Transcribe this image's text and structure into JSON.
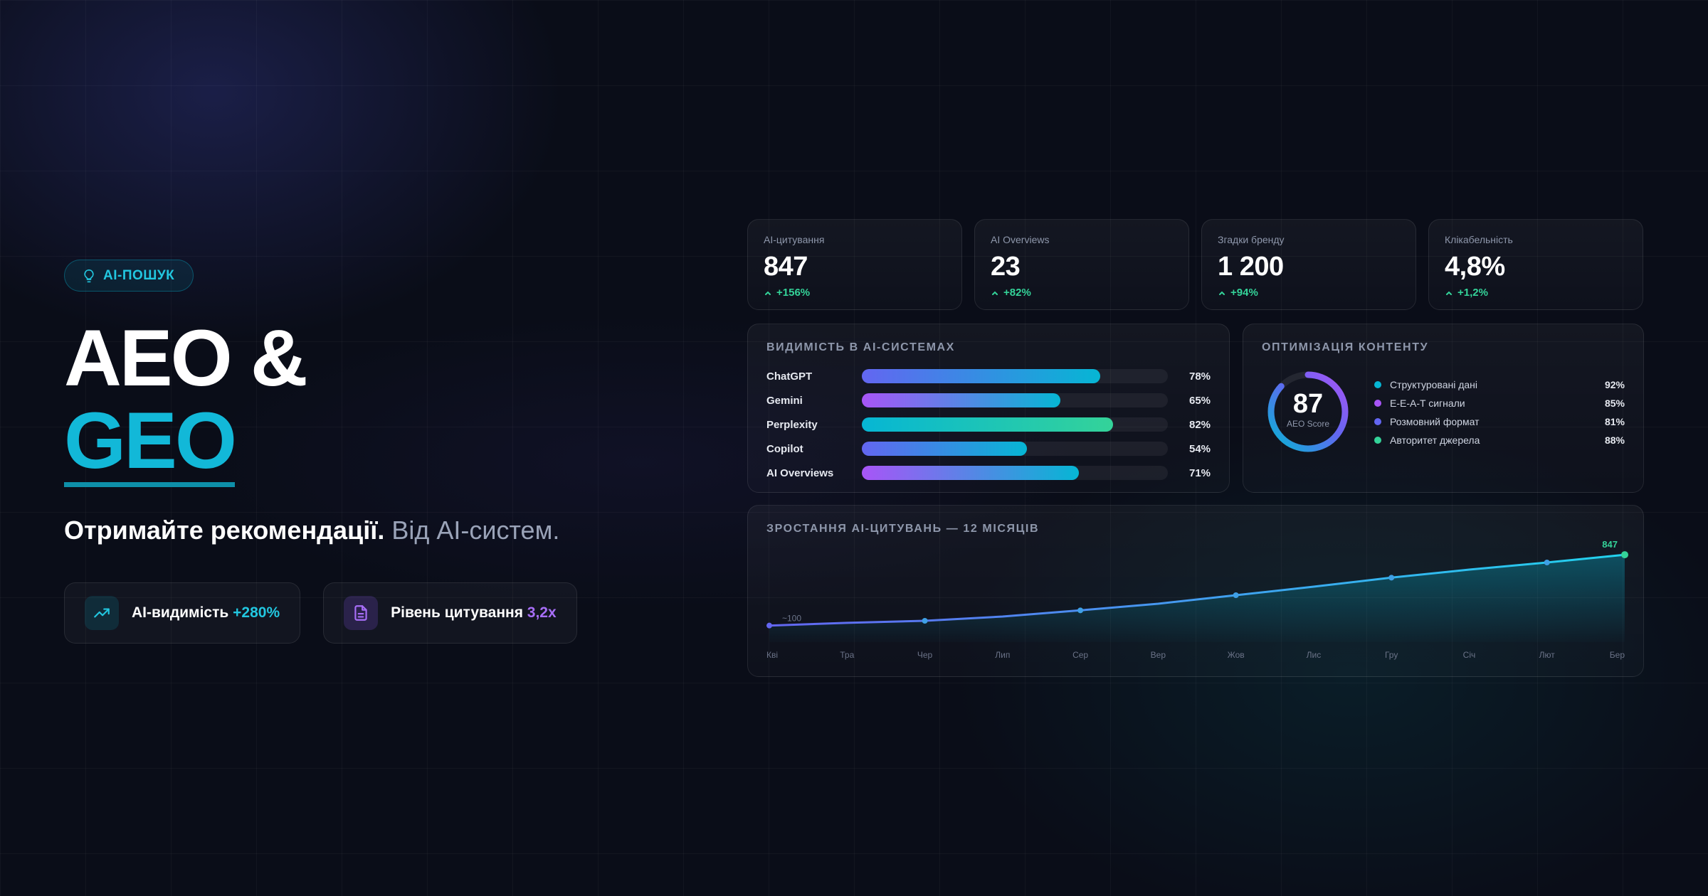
{
  "hero": {
    "badge": "AI-ПОШУК",
    "title_line1": "AEO &",
    "title_line2": "GEO",
    "subtitle_strong": "Отримайте рекомендації.",
    "subtitle_muted": " Від AI-систем.",
    "pills": [
      {
        "label": "AI-видимість ",
        "value": "+280%",
        "icon": "trending-up-icon"
      },
      {
        "label": "Рівень цитування ",
        "value": "3,2x",
        "icon": "document-icon"
      }
    ]
  },
  "kpis": [
    {
      "label": "AI-цитування",
      "value": "847",
      "delta": "+156%"
    },
    {
      "label": "AI Overviews",
      "value": "23",
      "delta": "+82%"
    },
    {
      "label": "Згадки бренду",
      "value": "1 200",
      "delta": "+94%"
    },
    {
      "label": "Клікабельність",
      "value": "4,8%",
      "delta": "+1,2%"
    }
  ],
  "visibility": {
    "title": "ВИДИМІСТЬ В AI-СИСТЕМАХ",
    "rows": [
      {
        "name": "ChatGPT",
        "value": 78,
        "label": "78%"
      },
      {
        "name": "Gemini",
        "value": 65,
        "label": "65%"
      },
      {
        "name": "Perplexity",
        "value": 82,
        "label": "82%"
      },
      {
        "name": "Copilot",
        "value": 54,
        "label": "54%"
      },
      {
        "name": "AI Overviews",
        "value": 71,
        "label": "71%"
      }
    ]
  },
  "optimization": {
    "title": "ОПТИМІЗАЦІЯ КОНТЕНТУ",
    "score": "87",
    "score_value": 87,
    "score_caption": "AEO Score",
    "items": [
      {
        "name": "Структуровані дані",
        "value": "92%",
        "color": "#06b6d4"
      },
      {
        "name": "E-E-A-T сигнали",
        "value": "85%",
        "color": "#a855f7"
      },
      {
        "name": "Розмовний формат",
        "value": "81%",
        "color": "#6366f1"
      },
      {
        "name": "Авторитет джерела",
        "value": "88%",
        "color": "#34d399"
      }
    ]
  },
  "chart_data": {
    "type": "area",
    "title": "ЗРОСТАННЯ AI-ЦИТУВАНЬ — 12 МІСЯЦІВ",
    "categories": [
      "Кві",
      "Тра",
      "Чер",
      "Лип",
      "Сер",
      "Вер",
      "Жов",
      "Лис",
      "Гру",
      "Січ",
      "Лют",
      "Бер"
    ],
    "values": [
      100,
      128,
      150,
      195,
      260,
      330,
      420,
      510,
      605,
      690,
      765,
      847
    ],
    "start_label": "~100",
    "end_label": "847",
    "ylim": [
      0,
      900
    ],
    "xlabel": "",
    "ylabel": ""
  },
  "colors": {
    "accent_cyan": "#06b6d4",
    "accent_purple": "#a855f7",
    "accent_indigo": "#6366f1",
    "accent_green": "#34d399"
  }
}
